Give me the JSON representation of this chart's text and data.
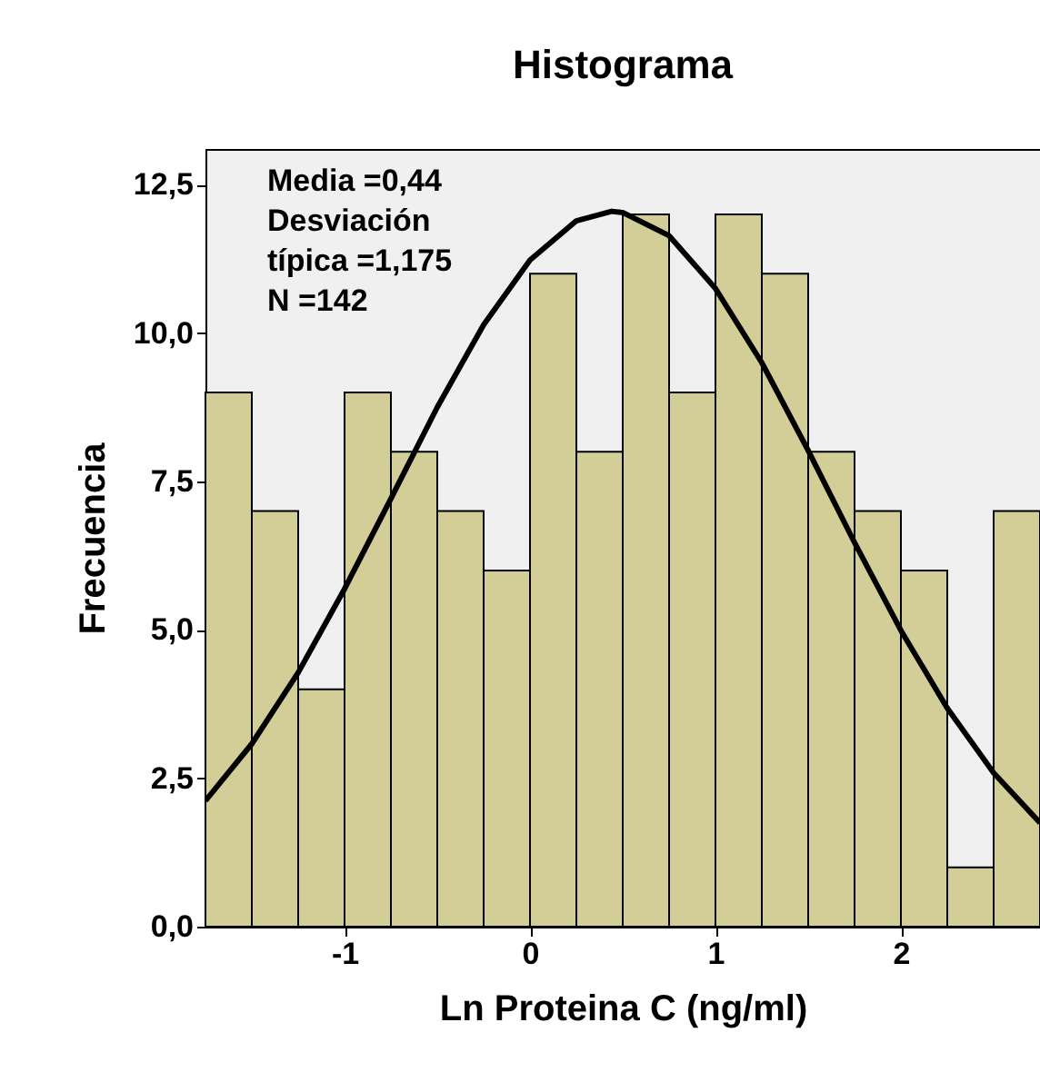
{
  "chart_data": {
    "type": "histogram",
    "title": "Histograma",
    "xlabel": "Ln Proteina C (ng/ml)",
    "ylabel": "Frecuencia",
    "bins": [
      -1.75,
      -1.5,
      -1.25,
      -1.0,
      -0.75,
      -0.5,
      -0.25,
      0.0,
      0.25,
      0.5,
      0.75,
      1.0,
      1.25,
      1.5,
      1.75,
      2.0,
      2.25,
      2.5,
      2.75
    ],
    "values": [
      9,
      7,
      4,
      9,
      8,
      7,
      6,
      11,
      8,
      12,
      9,
      12,
      11,
      8,
      7,
      6,
      1,
      7
    ],
    "color": "#d3ce97",
    "series": [
      {
        "type": "line",
        "color": "#000000",
        "x": [
          -1.75,
          -1.5,
          -1.25,
          -1.0,
          -0.75,
          -0.5,
          -0.25,
          0.0,
          0.25,
          0.44,
          0.5,
          0.75,
          1.0,
          1.25,
          1.5,
          1.75,
          2.0,
          2.25,
          2.5,
          2.75
        ],
        "values": [
          2.12,
          3.08,
          4.28,
          5.69,
          7.21,
          8.75,
          10.14,
          11.23,
          11.89,
          12.05,
          12.03,
          11.64,
          10.75,
          9.5,
          8.02,
          6.47,
          4.99,
          3.68,
          2.59,
          1.75
        ]
      }
    ],
    "xlim": [
      -1.75,
      2.75
    ],
    "xticks": [
      -1,
      0,
      1,
      2
    ],
    "ylim": [
      0,
      13.1
    ],
    "yticks": [
      {
        "value": 0,
        "label": "0,0"
      },
      {
        "value": 2.5,
        "label": "2,5"
      },
      {
        "value": 5,
        "label": "5,0"
      },
      {
        "value": 7.5,
        "label": "7,5"
      },
      {
        "value": 10,
        "label": "10,0"
      },
      {
        "value": 12.5,
        "label": "12,5"
      }
    ],
    "annotations": [
      "Media =0,44",
      "Desviación\ntípica =1,175",
      "N =142"
    ],
    "grid": false
  }
}
